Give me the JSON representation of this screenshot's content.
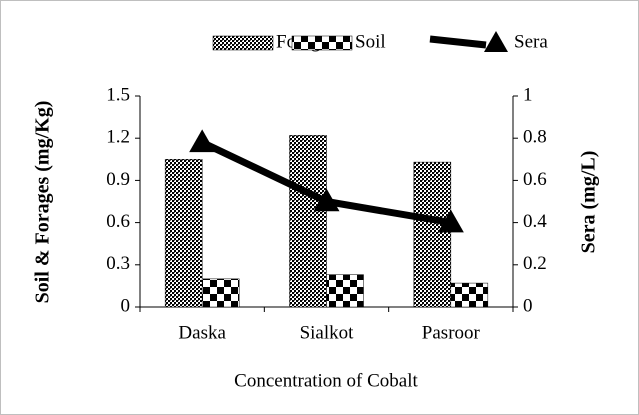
{
  "chart_data": {
    "type": "bar",
    "x_label": "Concentration of Cobalt",
    "y_label": "Soil & Forages (mg/Kg)",
    "y2_label": "Sera (mg/L)",
    "categories": [
      "Daska",
      "Sialkot",
      "Pasroor"
    ],
    "series": [
      {
        "name": "Forages",
        "type": "bar",
        "pattern": "dots",
        "color": "#000000",
        "values": [
          1.05,
          1.22,
          1.03
        ]
      },
      {
        "name": "Soil",
        "type": "bar",
        "pattern": "checker",
        "color": "#000000",
        "values": [
          0.2,
          0.23,
          0.17
        ]
      },
      {
        "name": "Sera",
        "type": "line",
        "marker": "triangle",
        "color": "#000000",
        "axis": "y2",
        "values": [
          0.78,
          0.5,
          0.4
        ]
      }
    ],
    "ylim": [
      0,
      1.5
    ],
    "yticks": [
      0,
      0.3,
      0.6,
      0.9,
      1.2,
      1.5
    ],
    "y2lim": [
      0,
      1
    ],
    "y2ticks": [
      0,
      0.2,
      0.4,
      0.6,
      0.8,
      1
    ],
    "legend": "top",
    "grid": false
  }
}
